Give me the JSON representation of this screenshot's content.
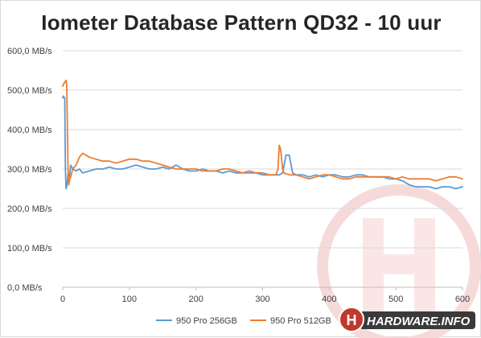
{
  "chart_data": {
    "type": "line",
    "title": "Iometer Database Pattern QD32 - 10 uur",
    "xlabel": "",
    "ylabel": "",
    "xlim": [
      0,
      600
    ],
    "ylim": [
      0,
      600
    ],
    "x_ticks": [
      0,
      100,
      200,
      300,
      400,
      500,
      600
    ],
    "y_ticks": [
      {
        "value": 0,
        "label": "0,0 MB/s"
      },
      {
        "value": 100,
        "label": "100,0 MB/s"
      },
      {
        "value": 200,
        "label": "200,0 MB/s"
      },
      {
        "value": 300,
        "label": "300,0 MB/s"
      },
      {
        "value": 400,
        "label": "400,0 MB/s"
      },
      {
        "value": 500,
        "label": "500,0 MB/s"
      },
      {
        "value": 600,
        "label": "600,0 MB/s"
      }
    ],
    "grid": "horizontal",
    "legend_position": "bottom",
    "series": [
      {
        "name": "950 Pro 256GB",
        "color": "#5b9bd5",
        "x": [
          0,
          1,
          3,
          4,
          5,
          6,
          7,
          8,
          10,
          12,
          15,
          20,
          25,
          30,
          40,
          50,
          60,
          70,
          80,
          90,
          100,
          110,
          120,
          130,
          140,
          150,
          160,
          170,
          180,
          190,
          200,
          210,
          220,
          230,
          240,
          250,
          260,
          270,
          280,
          290,
          300,
          310,
          320,
          325,
          330,
          335,
          340,
          345,
          350,
          360,
          370,
          380,
          390,
          400,
          410,
          420,
          430,
          440,
          450,
          460,
          470,
          480,
          490,
          500,
          510,
          520,
          530,
          540,
          550,
          560,
          570,
          580,
          590,
          600
        ],
        "y": [
          480,
          485,
          480,
          300,
          250,
          255,
          270,
          290,
          280,
          310,
          300,
          295,
          300,
          290,
          295,
          300,
          300,
          305,
          300,
          300,
          305,
          310,
          305,
          300,
          300,
          305,
          300,
          310,
          300,
          295,
          295,
          300,
          295,
          295,
          290,
          295,
          290,
          290,
          290,
          290,
          285,
          285,
          285,
          285,
          290,
          335,
          335,
          290,
          285,
          285,
          280,
          285,
          280,
          285,
          285,
          280,
          280,
          285,
          285,
          280,
          280,
          280,
          275,
          275,
          270,
          260,
          255,
          255,
          255,
          250,
          255,
          255,
          250,
          255
        ]
      },
      {
        "name": "950 Pro 512GB",
        "color": "#ed7d31",
        "x": [
          0,
          1,
          3,
          5,
          6,
          7,
          8,
          9,
          10,
          12,
          15,
          20,
          25,
          30,
          40,
          50,
          60,
          70,
          80,
          90,
          100,
          110,
          120,
          130,
          140,
          150,
          160,
          170,
          180,
          190,
          200,
          210,
          220,
          230,
          240,
          250,
          260,
          270,
          280,
          290,
          300,
          310,
          320,
          323,
          325,
          327,
          330,
          332,
          340,
          350,
          360,
          370,
          380,
          390,
          400,
          410,
          420,
          430,
          440,
          450,
          460,
          470,
          480,
          490,
          500,
          510,
          520,
          530,
          540,
          550,
          560,
          570,
          580,
          590,
          600
        ],
        "y": [
          510,
          515,
          520,
          525,
          510,
          400,
          300,
          260,
          270,
          280,
          300,
          310,
          330,
          340,
          330,
          325,
          320,
          320,
          315,
          320,
          325,
          325,
          320,
          320,
          315,
          310,
          305,
          300,
          300,
          300,
          300,
          295,
          295,
          295,
          300,
          300,
          295,
          290,
          295,
          290,
          290,
          285,
          285,
          300,
          360,
          350,
          300,
          290,
          285,
          285,
          280,
          275,
          280,
          285,
          285,
          280,
          275,
          275,
          280,
          280,
          280,
          280,
          280,
          280,
          275,
          280,
          275,
          275,
          275,
          275,
          270,
          275,
          280,
          280,
          275
        ]
      }
    ]
  },
  "watermark": {
    "text": "HARDWARE.INFO",
    "badge_letter": "H",
    "color": "#c0392b"
  }
}
